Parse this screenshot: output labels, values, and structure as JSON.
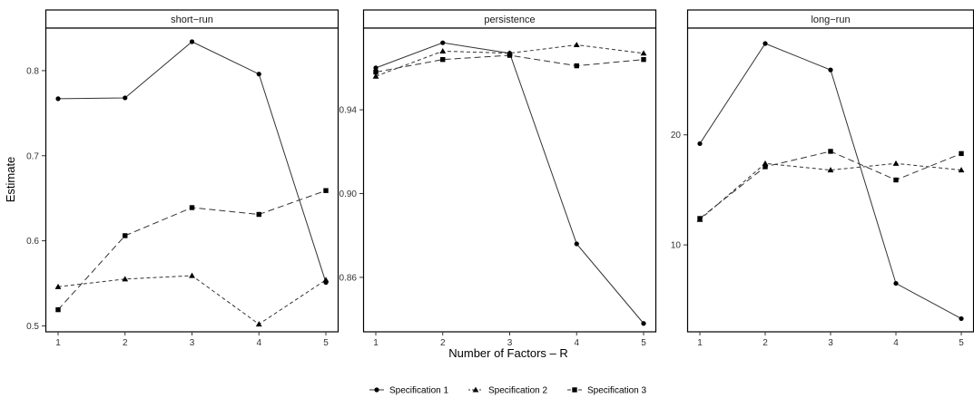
{
  "chart_data": {
    "type": "line",
    "xlabel": "Number of Factors – R",
    "ylabel": "Estimate",
    "categories": [
      1,
      2,
      3,
      4,
      5
    ],
    "legend": {
      "position": "bottom",
      "entries": [
        "Specification 1",
        "Specification 2",
        "Specification 3"
      ]
    },
    "grid": false,
    "panels": [
      {
        "title": "short−run",
        "ylim": [
          0.493,
          0.85
        ],
        "yticks": [
          0.5,
          0.6,
          0.7,
          0.8
        ],
        "ytick_labels": [
          "0.5",
          "0.6",
          "0.7",
          "0.8"
        ],
        "series": [
          {
            "name": "Specification 1",
            "values": [
              0.767,
              0.768,
              0.834,
              0.796,
              0.551
            ]
          },
          {
            "name": "Specification 2",
            "values": [
              0.546,
              0.555,
              0.559,
              0.502,
              0.554
            ]
          },
          {
            "name": "Specification 3",
            "values": [
              0.519,
              0.606,
              0.639,
              0.631,
              0.659
            ]
          }
        ]
      },
      {
        "title": "persistence",
        "ylim": [
          0.834,
          0.979
        ],
        "yticks": [
          0.86,
          0.9,
          0.94
        ],
        "ytick_labels": [
          "0.86",
          "0.90",
          "0.94"
        ],
        "series": [
          {
            "name": "Specification 1",
            "values": [
              0.96,
              0.972,
              0.967,
              0.876,
              0.838
            ]
          },
          {
            "name": "Specification 2",
            "values": [
              0.956,
              0.968,
              0.967,
              0.971,
              0.967
            ]
          },
          {
            "name": "Specification 3",
            "values": [
              0.958,
              0.964,
              0.966,
              0.961,
              0.964
            ]
          }
        ]
      },
      {
        "title": "long−run",
        "ylim": [
          2.1,
          29.7
        ],
        "yticks": [
          10,
          20
        ],
        "ytick_labels": [
          "10",
          "20"
        ],
        "series": [
          {
            "name": "Specification 1",
            "values": [
              19.2,
              28.3,
              25.9,
              6.5,
              3.3
            ]
          },
          {
            "name": "Specification 2",
            "values": [
              12.3,
              17.4,
              16.8,
              17.4,
              16.8
            ]
          },
          {
            "name": "Specification 3",
            "values": [
              12.4,
              17.1,
              18.5,
              15.9,
              18.3
            ]
          }
        ]
      }
    ]
  }
}
